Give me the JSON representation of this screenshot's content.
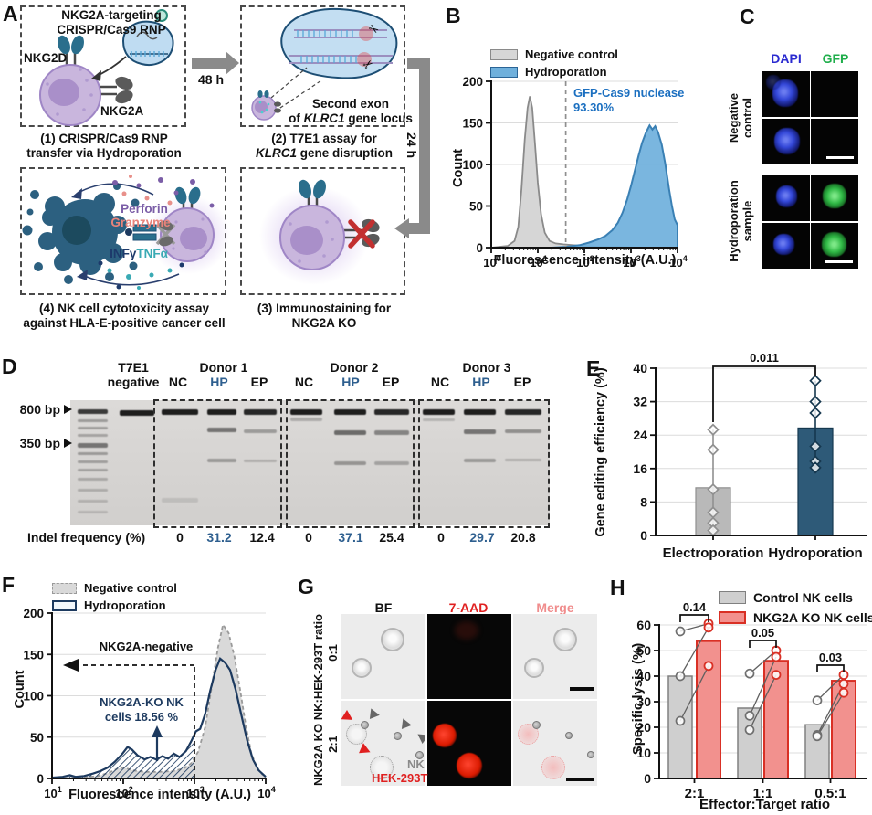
{
  "panels": {
    "A": {
      "label": "A",
      "step1": {
        "title1": "NKG2A-targeting",
        "title2": "CRISPR/Cas9 RNP",
        "nkg2d": "NKG2D",
        "nkg2a": "NKG2A",
        "caption1": "(1) CRISPR/Cas9 RNP",
        "caption2": "transfer via Hydroporation"
      },
      "arrow48": "48 h",
      "arrow24": "24 h",
      "step2": {
        "ann1": "Second exon",
        "ann2_pre": "of ",
        "ann2_gene": "KLRC1",
        "ann2_post": " gene locus",
        "caption1": "(2) T7E1 assay for",
        "caption2_gene": "KLRC1",
        "caption2_rest": " gene disruption"
      },
      "step3": {
        "caption1": "(3) Immunostaining for",
        "caption2": "NKG2A KO"
      },
      "step4": {
        "perforin": "Perforin",
        "granzyme": "Granzyme",
        "ifng": "INFγ",
        "tnfa": "TNFα",
        "caption1": "(4) NK cell cytotoxicity assay",
        "caption2": "against HLA-E-positive cancer cell"
      }
    },
    "B": {
      "label": "B",
      "legend": [
        {
          "name": "Negative control"
        },
        {
          "name": "Hydroporation"
        }
      ],
      "ann1": "GFP-Cas9 nuclease",
      "ann2": "93.30%",
      "ylabel": "Count",
      "xlabel": "Fluorescence intensity (A.U.)"
    },
    "C": {
      "label": "C",
      "col1": "DAPI",
      "col2": "GFP",
      "row1a": "Negative",
      "row1b": "control",
      "row2a": "Hydroporation",
      "row2b": "sample"
    },
    "D": {
      "label": "D",
      "t7e1a": "T7E1",
      "t7e1b": "negative",
      "donors": [
        "Donor 1",
        "Donor 2",
        "Donor 3"
      ],
      "lanes": [
        "NC",
        "HP",
        "EP"
      ],
      "marker800": "800 bp",
      "marker350": "350 bp",
      "indel_label": "Indel frequency (%)",
      "indel": [
        [
          "0",
          "31.2",
          "12.4"
        ],
        [
          "0",
          "37.1",
          "25.4"
        ],
        [
          "0",
          "29.7",
          "20.8"
        ]
      ]
    },
    "E": {
      "label": "E",
      "ylabel": "Gene editing efficiency (%)"
    },
    "F": {
      "label": "F",
      "legend": [
        {
          "name": "Negative control"
        },
        {
          "name": "Hydroporation"
        }
      ],
      "ylabel": "Count",
      "xlabel": "Fluorescence intensity (A.U.)",
      "ann_gate": "NKG2A-negative",
      "ann_ko1": "NKG2A-KO NK",
      "ann_ko2": "cells 18.56 %"
    },
    "G": {
      "label": "G",
      "cols": [
        "BF",
        "7-AAD",
        "Merge"
      ],
      "row_label": "NKG2A KO NK:HEK-293T ratio",
      "ratios": [
        "0:1",
        "2:1"
      ],
      "nk": "NK",
      "hek": "HEK-293T"
    },
    "H": {
      "label": "H",
      "legend": [
        "Control NK cells",
        "NKG2A KO NK cells"
      ],
      "ylabel": "Specific lysis (%)",
      "xlabel": "Effector:Target ratio"
    }
  },
  "colors": {
    "navy": "#1d3a5f",
    "steel": "#2e5a78",
    "blue_fill": "#6fb0dc",
    "blue_text": "#1b6fc0",
    "hp_blue": "#2e5f8f",
    "gray_fill": "#d6d6d6",
    "red": "#d93025",
    "salmon": "#f2918e",
    "green_text": "#1fae4b",
    "dapi_text": "#2a2ad0"
  },
  "chart_data": [
    {
      "id": "B",
      "type": "area",
      "xscale": "log",
      "xlim_exp": [
        0,
        4
      ],
      "ylim": [
        0,
        200
      ],
      "yticks": [
        0,
        50,
        100,
        150,
        200
      ],
      "xtick_exps": [
        0,
        1,
        2,
        3,
        4
      ],
      "gate_logx": 1.6,
      "xlabel": "Fluorescence intensity (A.U.)",
      "ylabel": "Count",
      "series": [
        {
          "name": "Negative control",
          "points": [
            [
              0,
              0
            ],
            [
              0.35,
              2
            ],
            [
              0.5,
              8
            ],
            [
              0.58,
              25
            ],
            [
              0.65,
              70
            ],
            [
              0.72,
              130
            ],
            [
              0.78,
              168
            ],
            [
              0.83,
              182
            ],
            [
              0.88,
              168
            ],
            [
              0.94,
              125
            ],
            [
              1.0,
              78
            ],
            [
              1.07,
              40
            ],
            [
              1.15,
              18
            ],
            [
              1.25,
              8
            ],
            [
              1.38,
              5
            ],
            [
              1.55,
              4
            ],
            [
              1.75,
              3
            ],
            [
              2.0,
              2
            ],
            [
              2.3,
              1
            ],
            [
              2.7,
              1
            ],
            [
              3.2,
              0
            ],
            [
              4,
              0
            ]
          ]
        },
        {
          "name": "Hydroporation",
          "points": [
            [
              1.3,
              0
            ],
            [
              1.6,
              1
            ],
            [
              1.9,
              3
            ],
            [
              2.1,
              6
            ],
            [
              2.3,
              10
            ],
            [
              2.45,
              14
            ],
            [
              2.6,
              21
            ],
            [
              2.72,
              30
            ],
            [
              2.82,
              42
            ],
            [
              2.92,
              58
            ],
            [
              3.0,
              74
            ],
            [
              3.08,
              92
            ],
            [
              3.16,
              110
            ],
            [
              3.24,
              126
            ],
            [
              3.32,
              138
            ],
            [
              3.4,
              147
            ],
            [
              3.46,
              142
            ],
            [
              3.52,
              146
            ],
            [
              3.58,
              139
            ],
            [
              3.66,
              124
            ],
            [
              3.74,
              100
            ],
            [
              3.82,
              70
            ],
            [
              3.88,
              50
            ],
            [
              3.94,
              34
            ],
            [
              4,
              27
            ]
          ]
        }
      ]
    },
    {
      "id": "E",
      "type": "bar",
      "ylim": [
        0,
        40
      ],
      "yticks": [
        0,
        8,
        16,
        24,
        32,
        40
      ],
      "ylabel": "Gene editing efficiency (%)",
      "categories": [
        "Electroporation",
        "Hydroporation"
      ],
      "values": [
        11.4,
        25.7
      ],
      "points": [
        [
          25.3,
          20.5,
          11,
          5.5,
          3,
          1.2
        ],
        [
          37,
          32,
          29.3,
          21.3,
          17.7,
          16.2
        ]
      ],
      "pvalue": "0.011"
    },
    {
      "id": "F",
      "type": "area",
      "xscale": "log",
      "xlim_exp": [
        1,
        4
      ],
      "ylim": [
        0,
        200
      ],
      "yticks": [
        0,
        50,
        100,
        150,
        200
      ],
      "xtick_exps": [
        1,
        2,
        3,
        4
      ],
      "gate_logx": 3,
      "gate_count": 137,
      "ko_fraction_label": "18.56 %",
      "xlabel": "Fluorescence intensity (A.U.)",
      "ylabel": "Count",
      "series": [
        {
          "name": "Negative control",
          "points": [
            [
              1,
              0
            ],
            [
              1.4,
              1
            ],
            [
              1.65,
              3
            ],
            [
              1.8,
              7
            ],
            [
              1.92,
              12
            ],
            [
              2.02,
              13
            ],
            [
              2.12,
              10
            ],
            [
              2.3,
              8
            ],
            [
              2.5,
              8
            ],
            [
              2.7,
              9
            ],
            [
              2.85,
              12
            ],
            [
              2.95,
              18
            ],
            [
              3.05,
              32
            ],
            [
              3.15,
              62
            ],
            [
              3.25,
              115
            ],
            [
              3.33,
              158
            ],
            [
              3.4,
              186
            ],
            [
              3.48,
              176
            ],
            [
              3.56,
              148
            ],
            [
              3.64,
              108
            ],
            [
              3.72,
              64
            ],
            [
              3.8,
              30
            ],
            [
              3.88,
              13
            ],
            [
              3.95,
              5
            ],
            [
              4,
              2
            ]
          ]
        },
        {
          "name": "Hydroporation",
          "points": [
            [
              1,
              1
            ],
            [
              1.15,
              2
            ],
            [
              1.25,
              4
            ],
            [
              1.33,
              2
            ],
            [
              1.45,
              3
            ],
            [
              1.58,
              6
            ],
            [
              1.68,
              9
            ],
            [
              1.78,
              13
            ],
            [
              1.88,
              20
            ],
            [
              1.98,
              29
            ],
            [
              2.06,
              38
            ],
            [
              2.12,
              35
            ],
            [
              2.2,
              28
            ],
            [
              2.3,
              23
            ],
            [
              2.38,
              26
            ],
            [
              2.46,
              23
            ],
            [
              2.55,
              27
            ],
            [
              2.63,
              24
            ],
            [
              2.71,
              30
            ],
            [
              2.79,
              26
            ],
            [
              2.88,
              33
            ],
            [
              2.96,
              46
            ],
            [
              3.02,
              57
            ],
            [
              3.08,
              60
            ],
            [
              3.15,
              78
            ],
            [
              3.22,
              106
            ],
            [
              3.3,
              132
            ],
            [
              3.36,
              145
            ],
            [
              3.43,
              140
            ],
            [
              3.5,
              131
            ],
            [
              3.58,
              107
            ],
            [
              3.66,
              76
            ],
            [
              3.74,
              46
            ],
            [
              3.82,
              23
            ],
            [
              3.9,
              10
            ],
            [
              4,
              2
            ]
          ]
        }
      ]
    },
    {
      "id": "H",
      "type": "bar",
      "ylim": [
        0,
        60
      ],
      "yticks": [
        0,
        10,
        20,
        30,
        40,
        50,
        60
      ],
      "ylabel": "Specific lysis (%)",
      "xlabel": "Effector:Target ratio",
      "categories": [
        "2:1",
        "1:1",
        "0.5:1"
      ],
      "series": [
        {
          "name": "Control NK cells",
          "values": [
            40,
            27.5,
            21
          ],
          "points": [
            [
              57.5,
              40,
              22.5
            ],
            [
              41,
              24.5,
              19
            ],
            [
              30.5,
              17,
              16.5
            ]
          ]
        },
        {
          "name": "NKG2A KO NK cells",
          "values": [
            53.7,
            46,
            38.2
          ],
          "points": [
            [
              60.5,
              59,
              44
            ],
            [
              50,
              47.5,
              40.5
            ],
            [
              40.5,
              37,
              33.5
            ]
          ]
        }
      ],
      "pvalues": [
        "0.14",
        "0.05",
        "0.03"
      ]
    }
  ]
}
